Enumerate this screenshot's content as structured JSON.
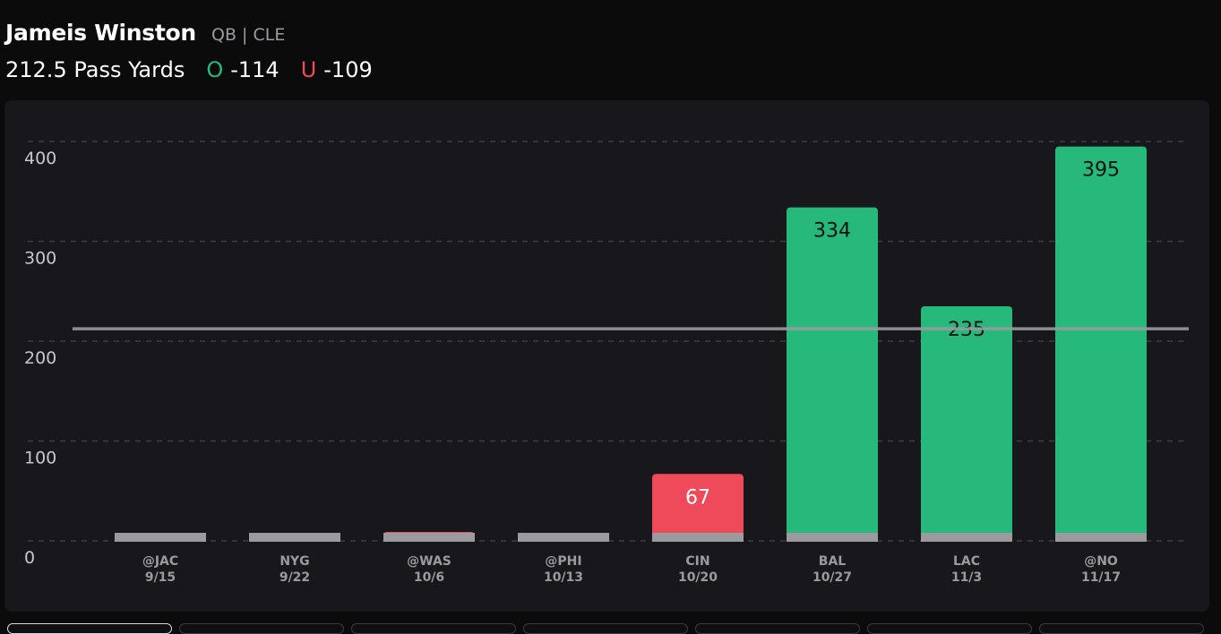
{
  "player": {
    "name": "Jameis Winston",
    "position_team": "QB | CLE"
  },
  "prop": {
    "line_text": "212.5 Pass Yards",
    "over_label": "O",
    "over_odds": "-114",
    "under_label": "U",
    "under_odds": "-109"
  },
  "colors": {
    "over": "#26b97b",
    "under": "#ef4a59",
    "neutral": "#9b9b9f",
    "line": "#9a9a9e",
    "grid": "#3c3c44"
  },
  "chart_data": {
    "type": "bar",
    "title": "",
    "xlabel": "",
    "ylabel": "",
    "ylim": [
      0,
      400
    ],
    "yticks": [
      0,
      100,
      200,
      300,
      400
    ],
    "threshold": 212.5,
    "grid": true,
    "categories": [
      {
        "opp": "@JAC",
        "date": "9/15"
      },
      {
        "opp": "NYG",
        "date": "9/22"
      },
      {
        "opp": "@WAS",
        "date": "10/6"
      },
      {
        "opp": "@PHI",
        "date": "10/13"
      },
      {
        "opp": "CIN",
        "date": "10/20"
      },
      {
        "opp": "BAL",
        "date": "10/27"
      },
      {
        "opp": "LAC",
        "date": "11/3"
      },
      {
        "opp": "@NO",
        "date": "11/17"
      }
    ],
    "values": [
      0,
      0,
      9,
      0,
      67,
      334,
      235,
      395
    ],
    "value_labels": [
      "",
      "",
      "",
      "",
      "67",
      "334",
      "235",
      "395"
    ],
    "bar_status": [
      "none",
      "none",
      "under",
      "none",
      "under",
      "over",
      "over",
      "over"
    ]
  }
}
